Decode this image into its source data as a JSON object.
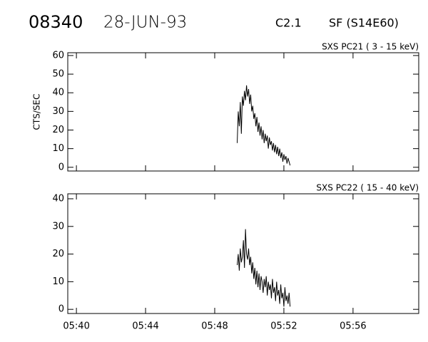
{
  "header": {
    "number": "08340",
    "date": "28-JUN-93",
    "class": "C2.1",
    "location": "SF (S14E60)"
  },
  "chart_data": [
    {
      "type": "line",
      "title": "SXS PC21  (  3 - 15 keV)",
      "ylabel": "CTS/SEC",
      "x": [
        349.3,
        349.36,
        349.42,
        349.48,
        349.54,
        349.6,
        349.66,
        349.72,
        349.78,
        349.84,
        349.9,
        349.96,
        350.02,
        350.08,
        350.14,
        350.2,
        350.26,
        350.32,
        350.38,
        350.44,
        350.5,
        350.56,
        350.62,
        350.68,
        350.74,
        350.8,
        350.86,
        350.92,
        350.98,
        351.04,
        351.1,
        351.16,
        351.22,
        351.28,
        351.34,
        351.4,
        351.46,
        351.52,
        351.58,
        351.64,
        351.7,
        351.76,
        351.82,
        351.88,
        351.94,
        352.0,
        352.06,
        352.12,
        352.18,
        352.24,
        352.3,
        352.36
      ],
      "series": [
        {
          "color": "#000000",
          "values": [
            13,
            30,
            22,
            35,
            18,
            38,
            33,
            41,
            36,
            44,
            38,
            42,
            34,
            39,
            30,
            33,
            26,
            29,
            22,
            27,
            19,
            24,
            17,
            22,
            15,
            20,
            13,
            18,
            14,
            17,
            10,
            16,
            12,
            14,
            9,
            13,
            8,
            12,
            7,
            11,
            6,
            10,
            5,
            8,
            3,
            7,
            4,
            6,
            2,
            5,
            3,
            1
          ]
        }
      ],
      "xlim": [
        339.5,
        359.8
      ],
      "xticks": [
        340,
        344,
        348,
        352,
        356
      ],
      "ylim": [
        -2,
        61.5
      ],
      "yticks": [
        0,
        10,
        20,
        30,
        40,
        50,
        60
      ]
    },
    {
      "type": "line",
      "title": "SXS PC22  ( 15 - 40 keV)",
      "x": [
        349.3,
        349.36,
        349.42,
        349.48,
        349.54,
        349.6,
        349.66,
        349.72,
        349.78,
        349.84,
        349.9,
        349.96,
        350.02,
        350.08,
        350.14,
        350.2,
        350.26,
        350.32,
        350.38,
        350.44,
        350.5,
        350.56,
        350.62,
        350.68,
        350.74,
        350.8,
        350.86,
        350.92,
        350.98,
        351.04,
        351.1,
        351.16,
        351.22,
        351.28,
        351.34,
        351.4,
        351.46,
        351.52,
        351.58,
        351.64,
        351.7,
        351.76,
        351.82,
        351.88,
        351.94,
        352.0,
        352.06,
        352.12,
        352.18,
        352.24,
        352.3,
        352.36
      ],
      "series": [
        {
          "color": "#000000",
          "values": [
            16,
            20,
            14,
            22,
            17,
            19,
            25,
            15,
            29,
            20,
            18,
            22,
            16,
            19,
            13,
            17,
            11,
            15,
            9,
            14,
            8,
            13,
            7,
            12,
            10,
            6,
            11,
            8,
            12,
            5,
            10,
            7,
            9,
            4,
            11,
            6,
            8,
            3,
            10,
            5,
            7,
            2,
            9,
            4,
            6,
            1,
            8,
            3,
            5,
            2,
            6,
            1
          ]
        }
      ],
      "xlim": [
        339.5,
        359.8
      ],
      "xticks": [
        {
          "value": 340,
          "label": "05:40"
        },
        {
          "value": 344,
          "label": "05:44"
        },
        {
          "value": 348,
          "label": "05:48"
        },
        {
          "value": 352,
          "label": "05:52"
        },
        {
          "value": 356,
          "label": "05:56"
        }
      ],
      "ylim": [
        -1.5,
        41.8
      ],
      "yticks": [
        0,
        10,
        20,
        30,
        40
      ]
    }
  ]
}
